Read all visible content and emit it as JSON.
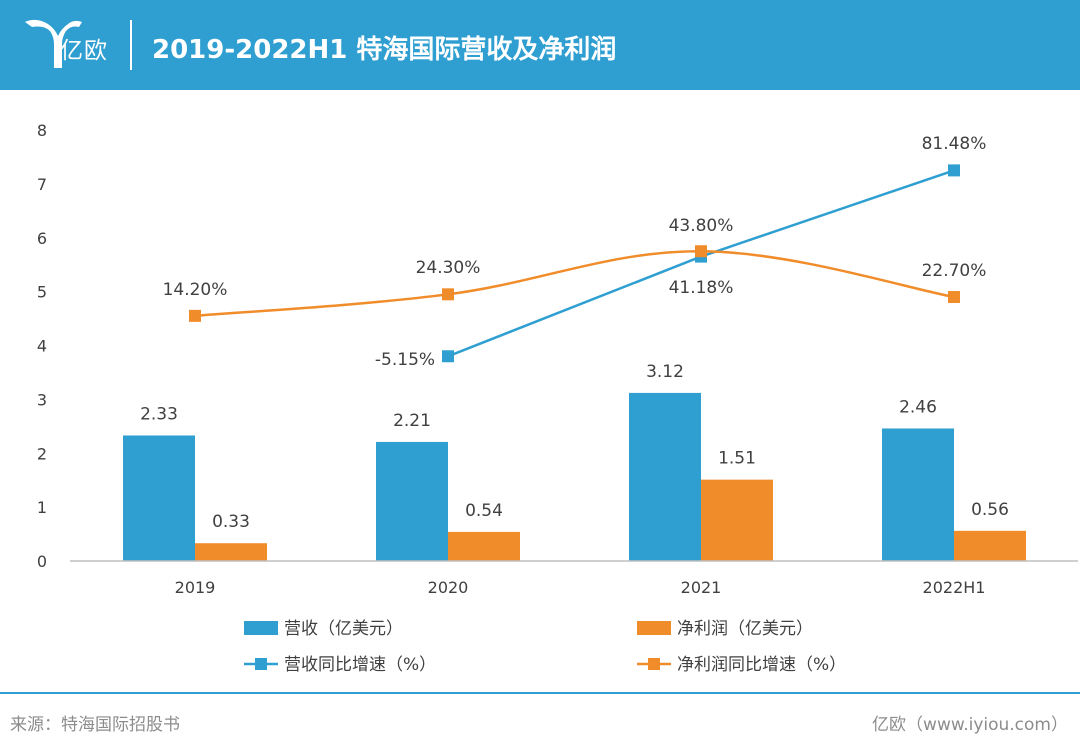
{
  "header": {
    "logo_text": "亿欧",
    "title": "2019-2022H1 特海国际营收及净利润"
  },
  "footer": {
    "source": "来源：特海国际招股书",
    "credit": "亿欧（www.iyiou.com）"
  },
  "colors": {
    "header_bg": "#2f9fd1",
    "revenue": "#2f9fd1",
    "net_profit": "#f08c2a",
    "axis_text": "#404040"
  },
  "chart_data": {
    "type": "bar",
    "categories": [
      "2019",
      "2020",
      "2021",
      "2022H1"
    ],
    "ylim": [
      0,
      8
    ],
    "yticks": [
      "0",
      "1",
      "2",
      "3",
      "4",
      "5",
      "6",
      "7",
      "8"
    ],
    "grid": false,
    "legend_position": "bottom",
    "series": [
      {
        "name": "营收（亿美元）",
        "kind": "bar",
        "color": "#2f9fd1",
        "values": [
          2.33,
          2.21,
          3.12,
          2.46
        ],
        "labels": [
          "2.33",
          "2.21",
          "3.12",
          "2.46"
        ]
      },
      {
        "name": "净利润（亿美元）",
        "kind": "bar",
        "color": "#f08c2a",
        "values": [
          0.33,
          0.54,
          1.51,
          0.56
        ],
        "labels": [
          "0.33",
          "0.54",
          "1.51",
          "0.56"
        ]
      },
      {
        "name": "营收同比增速（%）",
        "kind": "line",
        "color": "#2f9fd1",
        "values": [
          null,
          3.8,
          5.65,
          7.25
        ],
        "labels": [
          null,
          "-5.15%",
          "41.18%",
          "81.48%"
        ]
      },
      {
        "name": "净利润同比增速（%）",
        "kind": "line",
        "smooth": true,
        "color": "#f08c2a",
        "values": [
          4.55,
          4.95,
          5.75,
          4.9
        ],
        "labels": [
          "14.20%",
          "24.30%",
          "43.80%",
          "22.70%"
        ]
      }
    ]
  }
}
